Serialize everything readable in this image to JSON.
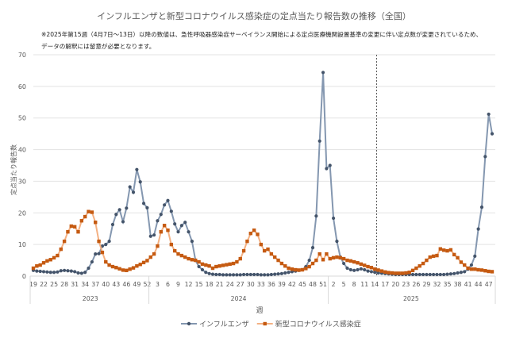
{
  "chart_data": {
    "type": "line",
    "title": "インフルエンザと新型コロナウイルス感染症の定点当たり報告数の推移（全国）",
    "note_lines": [
      "※2025年第15週（4月7日～13日）以降の数値は、急性呼吸器感染症サーベイランス開始による定点医療機関設置基準の変更に伴い定点数が変更されているため、",
      "データの解釈には留意が必要となります。"
    ],
    "xlabel": "週",
    "ylabel": "定点当たり報告数",
    "ylim": [
      0,
      70
    ],
    "yticks": [
      0,
      10,
      20,
      30,
      40,
      50,
      60,
      70
    ],
    "grid": true,
    "legend_position": "bottom",
    "years": [
      {
        "label": "2023",
        "first_week": 19,
        "last_week": 52,
        "tick_labels": [
          "19",
          "22",
          "25",
          "28",
          "31",
          "34",
          "37",
          "40",
          "43",
          "46",
          "49",
          "52"
        ]
      },
      {
        "label": "2024",
        "first_week": 1,
        "last_week": 52,
        "tick_labels": [
          "3",
          "6",
          "9",
          "12",
          "15",
          "18",
          "21",
          "24",
          "27",
          "30",
          "33",
          "36",
          "39",
          "42",
          "45",
          "48",
          "51"
        ]
      },
      {
        "label": "2025",
        "first_week": 1,
        "last_week": 48,
        "tick_labels": [
          "2",
          "5",
          "8",
          "11",
          "14",
          "17",
          "20",
          "23",
          "26",
          "29",
          "32",
          "35",
          "38",
          "41",
          "44",
          "47"
        ]
      }
    ],
    "reference_line": {
      "year": "2025",
      "between_weeks": [
        14,
        15
      ],
      "style": "dashed"
    },
    "series": [
      {
        "name": "インフルエンザ",
        "color": "#44546A",
        "line_color": "#8497B0",
        "marker": "circle",
        "values": [
          1.8,
          1.6,
          1.5,
          1.4,
          1.3,
          1.2,
          1.2,
          1.3,
          1.7,
          1.8,
          1.7,
          1.6,
          1.4,
          1.0,
          0.9,
          1.2,
          2.5,
          4.5,
          7.0,
          7.1,
          9.5,
          10.0,
          11.0,
          16.3,
          19.5,
          21.0,
          17.2,
          21.5,
          28.2,
          26.5,
          33.7,
          29.8,
          23.0,
          21.6,
          12.6,
          13.0,
          17.5,
          19.5,
          22.5,
          23.9,
          20.5,
          16.5,
          14.0,
          16.0,
          17.0,
          14.0,
          11.0,
          5.0,
          3.0,
          2.0,
          1.2,
          0.8,
          0.6,
          0.5,
          0.5,
          0.4,
          0.4,
          0.4,
          0.4,
          0.4,
          0.4,
          0.5,
          0.5,
          0.5,
          0.5,
          0.5,
          0.4,
          0.4,
          0.4,
          0.5,
          0.6,
          0.7,
          0.8,
          1.0,
          1.2,
          1.4,
          1.6,
          1.8,
          2.0,
          3.0,
          5.0,
          9.0,
          19.0,
          42.7,
          64.4,
          34.0,
          35.0,
          18.3,
          11.0,
          6.0,
          4.0,
          2.5,
          2.0,
          1.8,
          2.0,
          2.3,
          2.0,
          1.6,
          1.4,
          1.2,
          1.0,
          0.9,
          0.8,
          0.7,
          0.6,
          0.5,
          0.5,
          0.5,
          0.5,
          0.5,
          0.5,
          0.5,
          0.5,
          0.5,
          0.5,
          0.5,
          0.5,
          0.5,
          0.5,
          0.5,
          0.6,
          0.7,
          0.8,
          1.0,
          1.2,
          1.4,
          2.2,
          3.5,
          6.3,
          14.9,
          21.8,
          37.8,
          51.2,
          45.0
        ]
      },
      {
        "name": "新型コロナウイルス感染症",
        "color": "#C55A11",
        "line_color": "#F4B183",
        "marker": "square",
        "values": [
          2.5,
          3.2,
          3.5,
          4.2,
          4.8,
          5.2,
          5.8,
          6.5,
          8.5,
          11.0,
          14.0,
          15.8,
          15.6,
          14.0,
          17.5,
          18.8,
          20.4,
          20.2,
          17.0,
          11.0,
          7.5,
          4.5,
          3.5,
          3.0,
          2.7,
          2.3,
          1.9,
          1.8,
          2.2,
          2.6,
          3.2,
          3.7,
          4.3,
          4.9,
          6.0,
          7.0,
          9.5,
          14.0,
          16.0,
          14.5,
          10.0,
          8.0,
          7.0,
          6.5,
          6.0,
          5.5,
          5.2,
          5.0,
          4.5,
          3.8,
          3.5,
          3.2,
          2.5,
          3.0,
          3.2,
          3.4,
          3.6,
          3.8,
          4.0,
          4.5,
          5.5,
          8.0,
          11.0,
          13.5,
          14.5,
          13.2,
          10.0,
          8.0,
          8.5,
          7.0,
          6.0,
          5.0,
          4.0,
          3.2,
          2.5,
          2.2,
          2.0,
          1.9,
          2.0,
          2.4,
          3.0,
          4.0,
          5.0,
          7.0,
          5.2,
          7.0,
          5.5,
          5.8,
          6.0,
          5.8,
          5.5,
          5.0,
          4.8,
          4.5,
          4.2,
          3.8,
          3.4,
          3.0,
          2.7,
          2.2,
          1.9,
          1.6,
          1.3,
          1.1,
          1.0,
          0.9,
          0.9,
          0.9,
          1.0,
          1.2,
          1.8,
          2.5,
          3.2,
          4.0,
          5.0,
          6.0,
          6.3,
          6.5,
          8.6,
          8.2,
          8.0,
          8.3,
          6.8,
          5.8,
          4.4,
          3.5,
          2.5,
          2.2,
          2.2,
          2.0,
          1.9,
          1.7,
          1.5,
          1.4
        ]
      }
    ]
  }
}
